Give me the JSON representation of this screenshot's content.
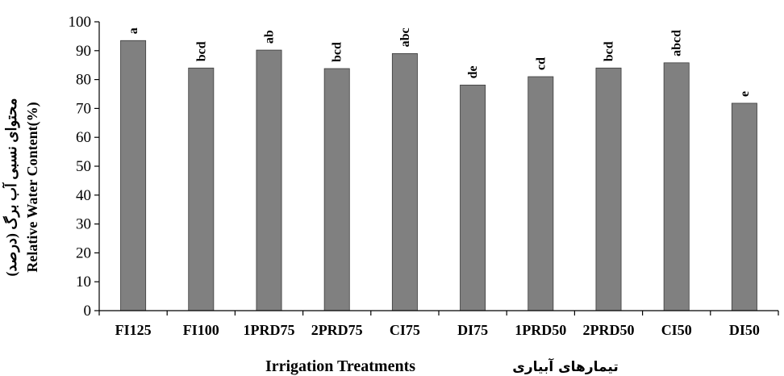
{
  "chart_data": {
    "type": "bar",
    "categories": [
      "FI125",
      "FI100",
      "1PRD75",
      "2PRD75",
      "CI75",
      "DI75",
      "1PRD50",
      "2PRD50",
      "CI50",
      "DI50"
    ],
    "values": [
      93.5,
      84.0,
      90.2,
      83.8,
      89.0,
      78.1,
      81.0,
      84.0,
      85.8,
      71.8
    ],
    "significance_letters": [
      "a",
      "bcd",
      "ab",
      "bcd",
      "abc",
      "de",
      "cd",
      "bcd",
      "abcd",
      "e"
    ],
    "xlabel": "Irrigation Treatments",
    "xlabel_fa": "تیمارهای آبیاری",
    "ylabel": "Relative Water Content(%)",
    "ylabel_fa": "محتوای نسبی آب برگ (درصد)",
    "ylim": [
      0,
      100
    ],
    "yticks": [
      0,
      10,
      20,
      30,
      40,
      50,
      60,
      70,
      80,
      90,
      100
    ],
    "bar_color": "#808080",
    "grid": false
  }
}
